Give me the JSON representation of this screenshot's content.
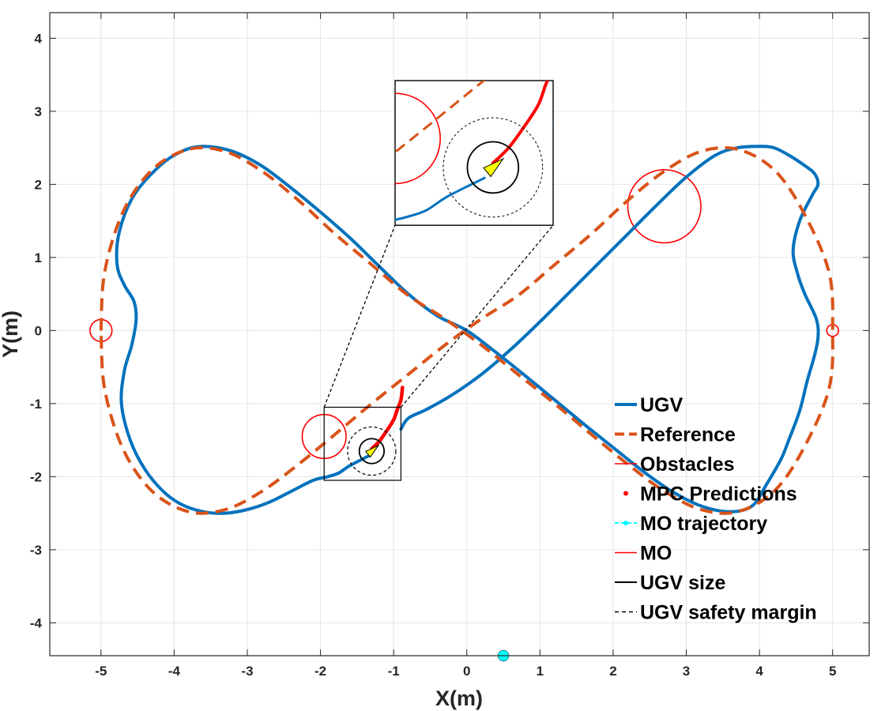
{
  "chart_data": {
    "type": "line",
    "xlabel": "X(m)",
    "ylabel": "Y(m)",
    "xlim": [
      -5.7,
      5.5
    ],
    "ylim": [
      -4.45,
      4.35
    ],
    "grid": true,
    "x_ticks": [
      -5,
      -4,
      -3,
      -2,
      -1,
      0,
      1,
      2,
      3,
      4,
      5
    ],
    "y_ticks": [
      -4,
      -3,
      -2,
      -1,
      0,
      1,
      2,
      3,
      4
    ],
    "legend_position": "bottom-right",
    "legend": [
      {
        "key": "ugv",
        "label": "UGV"
      },
      {
        "key": "reference",
        "label": "Reference"
      },
      {
        "key": "obstacles",
        "label": "Obstacles"
      },
      {
        "key": "mpc",
        "label": "MPC Predictions"
      },
      {
        "key": "mo_traj",
        "label": "MO trajectory"
      },
      {
        "key": "mo",
        "label": "MO"
      },
      {
        "key": "ugv_size",
        "label": "UGV size"
      },
      {
        "key": "safety",
        "label": "UGV safety margin"
      }
    ],
    "colors": {
      "ugv": "#0072BD",
      "reference": "#D95319",
      "obstacle": "#FF0000",
      "mpc": "#FF0000",
      "mo_traj": "#00FFFF",
      "arrow": "#FFFF00",
      "ugv_size": "#000000",
      "grid": "#e6e6e6"
    },
    "series": [
      {
        "name": "UGV",
        "x": [
          -1.35,
          -1.6,
          -1.75,
          -1.9,
          -2.1,
          -2.4,
          -2.7,
          -3.0,
          -3.3,
          -3.6,
          -3.9,
          -4.15,
          -4.4,
          -4.6,
          -4.72,
          -4.68,
          -4.58,
          -4.52,
          -4.55,
          -4.68,
          -4.78,
          -4.75,
          -4.55,
          -4.2,
          -3.9,
          -3.6,
          -3.2,
          -2.8,
          -2.4,
          -2.0,
          -1.6,
          -1.2,
          -0.8,
          -0.4,
          0.0,
          0.4,
          0.8,
          1.2,
          1.6,
          2.0,
          2.4,
          2.8,
          3.2,
          3.6,
          3.9,
          4.1,
          4.3,
          4.4,
          4.55,
          4.65,
          4.75,
          4.8,
          4.78,
          4.62,
          4.52,
          4.46,
          4.55,
          4.72,
          4.8,
          4.75,
          4.6,
          4.4,
          4.2,
          4.0,
          3.7,
          3.4,
          3.0,
          2.6,
          2.2,
          1.8,
          1.4,
          1.0,
          0.6,
          0.2,
          -0.2,
          -0.55,
          -0.8,
          -0.9
        ],
        "y": [
          -1.72,
          -1.85,
          -1.95,
          -2.0,
          -2.05,
          -2.2,
          -2.35,
          -2.45,
          -2.5,
          -2.48,
          -2.38,
          -2.2,
          -1.9,
          -1.5,
          -1.0,
          -0.55,
          -0.2,
          0.15,
          0.4,
          0.62,
          0.9,
          1.35,
          1.85,
          2.25,
          2.45,
          2.52,
          2.45,
          2.25,
          1.95,
          1.62,
          1.27,
          0.88,
          0.5,
          0.2,
          0.0,
          -0.3,
          -0.62,
          -0.95,
          -1.28,
          -1.6,
          -1.92,
          -2.2,
          -2.4,
          -2.48,
          -2.4,
          -2.1,
          -1.75,
          -1.5,
          -1.1,
          -0.7,
          -0.35,
          -0.1,
          0.15,
          0.5,
          0.78,
          1.1,
          1.5,
          1.85,
          2.0,
          2.15,
          2.27,
          2.4,
          2.5,
          2.52,
          2.5,
          2.4,
          2.1,
          1.72,
          1.32,
          0.92,
          0.52,
          0.12,
          -0.26,
          -0.6,
          -0.88,
          -1.08,
          -1.2,
          -1.35
        ]
      },
      {
        "name": "Reference",
        "x": [
          -5.0,
          -4.95,
          -4.7,
          -4.3,
          -3.8,
          -3.3,
          -2.8,
          -2.3,
          -1.8,
          -1.3,
          -0.8,
          -0.3,
          0.2,
          0.7,
          1.2,
          1.7,
          2.2,
          2.7,
          3.2,
          3.7,
          4.2,
          4.6,
          4.95,
          5.0,
          4.95,
          4.6,
          4.2,
          3.7,
          3.2,
          2.7,
          2.2,
          1.7,
          1.2,
          0.7,
          0.2,
          -0.3,
          -0.8,
          -1.3,
          -1.8,
          -2.3,
          -2.8,
          -3.3,
          -3.8,
          -4.3,
          -4.7,
          -4.95,
          -5.0
        ],
        "y": [
          0.0,
          0.8,
          1.62,
          2.2,
          2.48,
          2.45,
          2.18,
          1.78,
          1.32,
          0.9,
          0.48,
          0.16,
          -0.2,
          -0.6,
          -1.0,
          -1.42,
          -1.83,
          -2.2,
          -2.45,
          -2.48,
          -2.2,
          -1.62,
          -0.8,
          0.0,
          0.8,
          1.62,
          2.2,
          2.48,
          2.45,
          2.18,
          1.78,
          1.32,
          0.9,
          0.48,
          0.16,
          -0.2,
          -0.6,
          -1.0,
          -1.42,
          -1.83,
          -2.2,
          -2.45,
          -2.48,
          -2.2,
          -1.62,
          -0.8,
          0.0
        ]
      },
      {
        "name": "MPC Predictions",
        "x": [
          -1.3,
          -1.2,
          -1.1,
          -1.0,
          -0.95,
          -0.9,
          -0.88
        ],
        "y": [
          -1.62,
          -1.52,
          -1.38,
          -1.22,
          -1.08,
          -0.95,
          -0.78
        ]
      }
    ],
    "obstacles": [
      {
        "cx": -1.95,
        "cy": -1.45,
        "r": 0.3
      },
      {
        "cx": 2.7,
        "cy": 1.7,
        "r": 0.5
      },
      {
        "cx": -5.0,
        "cy": 0.0,
        "r": 0.15
      },
      {
        "cx": 5.0,
        "cy": 0.0,
        "r": 0.08
      }
    ],
    "ugv": {
      "cx": -1.3,
      "cy": -1.65,
      "r": 0.17,
      "safety_r": 0.33,
      "heading_deg": 40
    },
    "mo_marker": {
      "x": 0.5,
      "y": -4.45
    },
    "zoom_region": {
      "x": [
        -1.95,
        -0.9
      ],
      "y": [
        -2.05,
        -1.05
      ]
    },
    "zoom_inset": {
      "x": [
        -0.98,
        1.18
      ],
      "y": [
        1.44,
        3.42
      ]
    }
  }
}
